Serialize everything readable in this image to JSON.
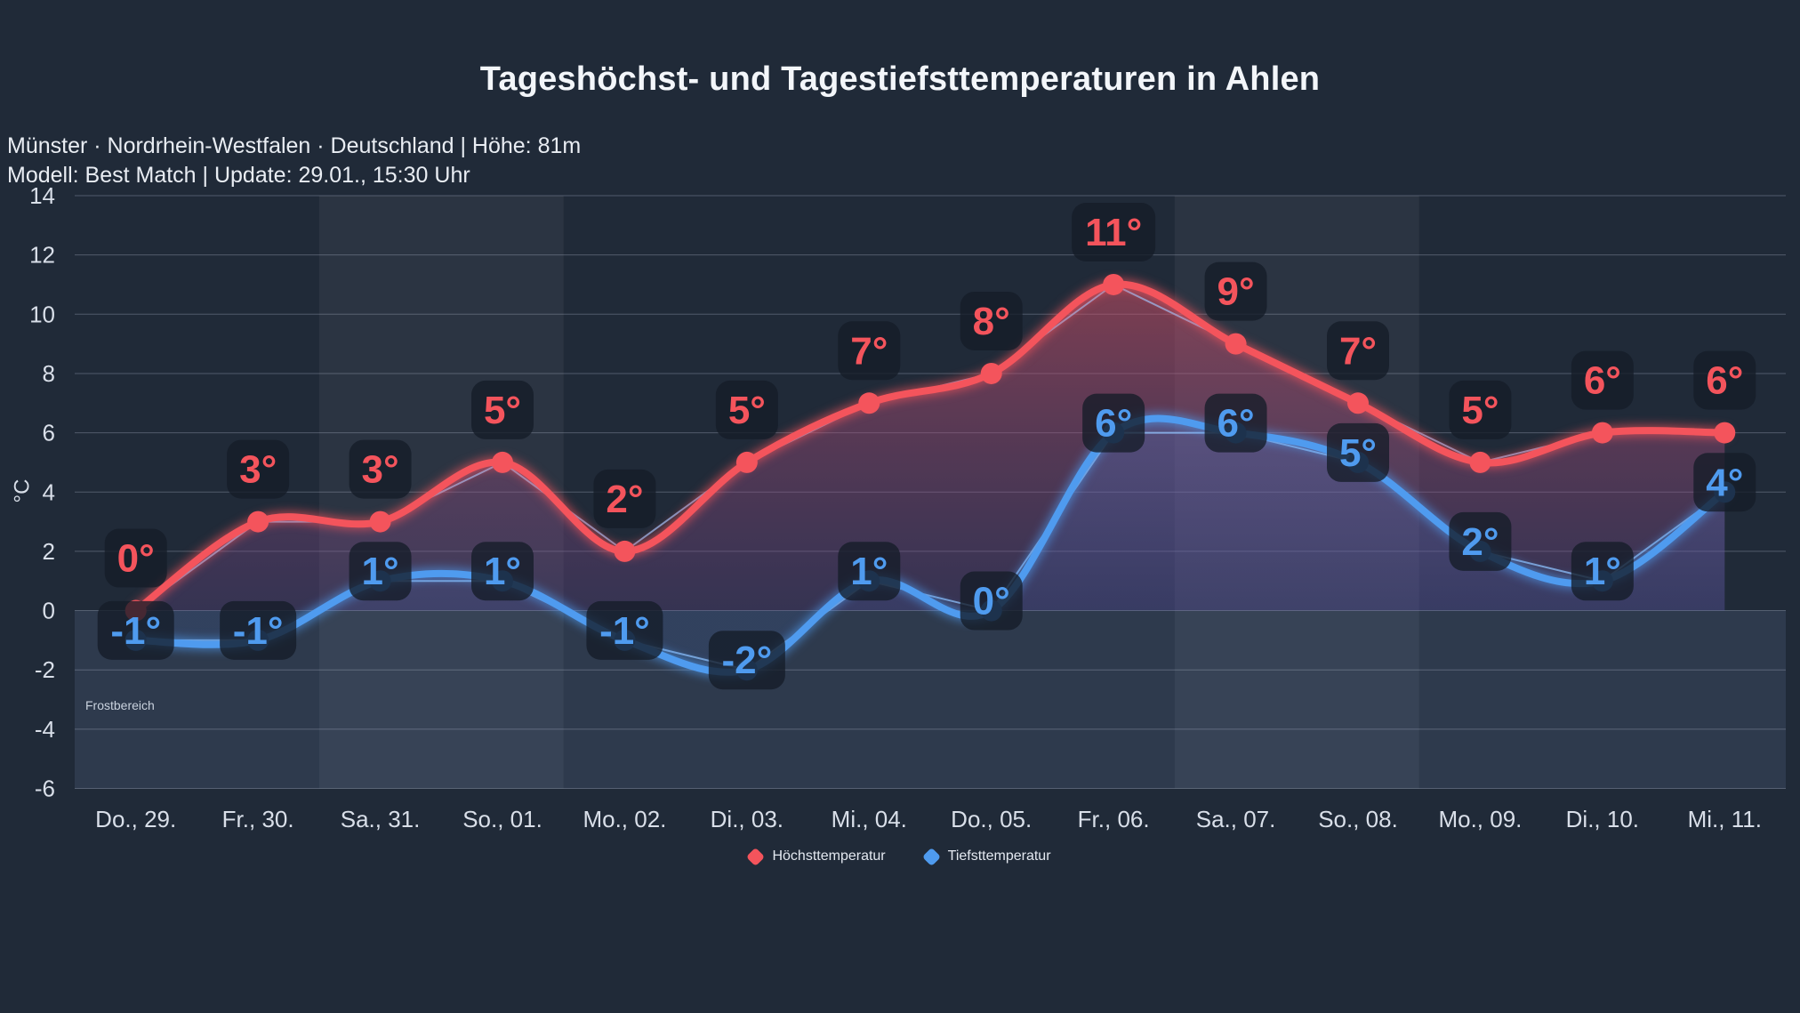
{
  "header": {
    "title": "Tageshöchst- und Tagestiefsttemperaturen in Ahlen",
    "subtitle_line1": "Münster · Nordrhein-Westfalen · Deutschland | Höhe: 81m",
    "subtitle_line2": "Modell: Best Match | Update: 29.01., 15:30 Uhr"
  },
  "chart_data": {
    "type": "line",
    "title": "Tageshöchst- und Tagestiefsttemperaturen in Ahlen",
    "categories": [
      "Do., 29.",
      "Fr., 30.",
      "Sa., 31.",
      "So., 01.",
      "Mo., 02.",
      "Di., 03.",
      "Mi., 04.",
      "Do., 05.",
      "Fr., 06.",
      "Sa., 07.",
      "So., 08.",
      "Mo., 09.",
      "Di., 10.",
      "Mi., 11."
    ],
    "series": [
      {
        "name": "Höchsttemperatur",
        "color": "#f4545c",
        "point_color": "#f4545c",
        "values": [
          0,
          3,
          3,
          5,
          2,
          5,
          7,
          8,
          11,
          9,
          7,
          5,
          6,
          6
        ],
        "label_suffix": "°"
      },
      {
        "name": "Tiefsttemperatur",
        "color": "#4f9bef",
        "point_color": "#3c7fd0",
        "values": [
          -1,
          -1,
          1,
          1,
          -1,
          -2,
          1,
          0,
          6,
          6,
          5,
          2,
          1,
          4
        ],
        "label_suffix": "°"
      }
    ],
    "ylabel": "°C",
    "ylim": [
      -6,
      14
    ],
    "ytick_step": 2,
    "grid": true,
    "legend_position": "bottom",
    "smooth": true,
    "area_baseline": 0,
    "annotations": {
      "frost_label": "Frostbereich",
      "frost_region_below": 0
    },
    "weekend_highlight_columns": [
      [
        2,
        3
      ],
      [
        9,
        10
      ]
    ]
  },
  "colors": {
    "background": "#202a38",
    "weekend_band": "rgba(255,255,255,0.05)",
    "frost_band": "rgba(148,181,233,0.12)",
    "gridline": "rgba(186,197,214,0.32)",
    "label_chip_bg": "rgba(21,28,40,0.78)",
    "thin_line": "rgba(147,196,253,0.75)",
    "high_area_top": "rgba(240,82,90,0.60)",
    "high_area_bottom": "rgba(110,75,150,0.28)",
    "low_area_top": "rgba(80,150,240,0.45)",
    "low_area_bottom": "rgba(70,110,200,0.14)",
    "axis_text": "#d9dfe9",
    "frost_text": "#c9d2de"
  }
}
